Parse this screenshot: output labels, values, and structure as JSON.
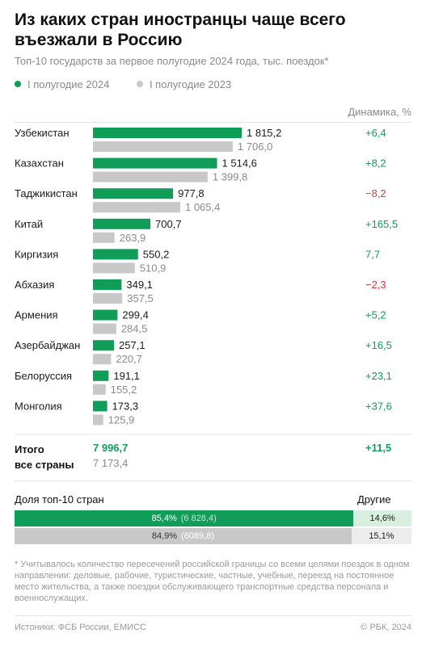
{
  "title": "Из каких стран иностранцы чаще всего въезжали в Россию",
  "subtitle": "Топ-10 государств за первое полугодие 2024 года, тыс. поездок*",
  "legend": {
    "s2024": "I полугодие 2024",
    "s2023": "I полугодие 2023"
  },
  "dynamics_header": "Динамика, %",
  "colors": {
    "green": "#0f9d58",
    "gray": "#c8c8c8",
    "positive": "#0f9d58",
    "negative": "#d83b3b",
    "share_rest_green": "#d9f0e1",
    "share_rest_gray": "#ececec"
  },
  "chart_data": {
    "type": "bar",
    "orientation": "horizontal",
    "categories": [
      "Узбекистан",
      "Казахстан",
      "Таджикистан",
      "Китай",
      "Киргизия",
      "Абхазия",
      "Армения",
      "Азербайджан",
      "Белоруссия",
      "Монголия"
    ],
    "series": [
      {
        "name": "I полугодие 2024",
        "values": [
          1815.2,
          1514.6,
          977.8,
          700.7,
          550.2,
          349.1,
          299.4,
          257.1,
          191.1,
          173.3
        ],
        "labels": [
          "1 815,2",
          "1 514,6",
          "977,8",
          "700,7",
          "550,2",
          "349,1",
          "299,4",
          "257,1",
          "191,1",
          "173,3"
        ]
      },
      {
        "name": "I полугодие 2023",
        "values": [
          1706.0,
          1399.8,
          1065.4,
          263.9,
          510.9,
          357.5,
          284.5,
          220.7,
          155.2,
          125.9
        ],
        "labels": [
          "1 706,0",
          "1 399,8",
          "1 065,4",
          "263,9",
          "510,9",
          "357,5",
          "284,5",
          "220,7",
          "155,2",
          "125,9"
        ]
      }
    ],
    "dynamics": [
      "+6,4",
      "+8,2",
      "−8,2",
      "+165,5",
      "7,7",
      "−2,3",
      "+5,2",
      "+16,5",
      "+23,1",
      "+37,6"
    ],
    "dynamics_sign": [
      "pos",
      "pos",
      "neg",
      "pos",
      "pos",
      "neg",
      "pos",
      "pos",
      "pos",
      "pos"
    ],
    "xlim": [
      0,
      1815.2
    ]
  },
  "total": {
    "label": "Итого\nвсе страны",
    "v2024": "7 996,7",
    "v2023": "7 173,4",
    "dynamics": "+11,5"
  },
  "share": {
    "header": "Доля топ-10 стран",
    "others_header": "Другие",
    "rows": [
      {
        "percent": 85.4,
        "label": "85,4%",
        "abs": "(6 828,4)",
        "rest": "14,6%"
      },
      {
        "percent": 84.9,
        "label": "84,9%",
        "abs": "(6089,8)",
        "rest": "15,1%"
      }
    ]
  },
  "footnote": "* Учитывалось количество пересечений российской границы со всеми целями поездок в одном направлении: деловые, рабочие, туристические, частные, учебные, переезд на постоянное место жительства, а также поездки обслуживающего транспортные средства персонала и военнослужащих.",
  "sources": "Истоники: ФСБ России, ЕМИСС",
  "copyright": "© РБК, 2024"
}
